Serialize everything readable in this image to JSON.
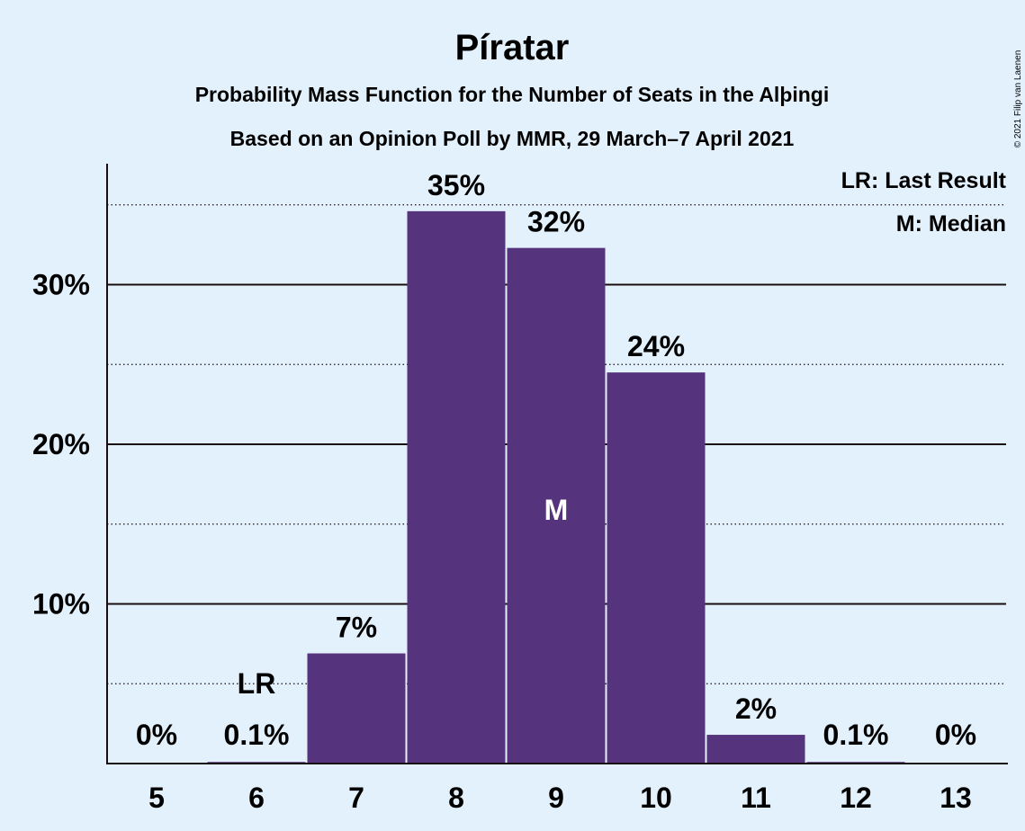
{
  "chart_data": {
    "type": "bar",
    "title": "Píratar",
    "subtitle_1": "Probability Mass Function for the Number of Seats in the Alþingi",
    "subtitle_2": "Based on an Opinion Poll by MMR, 29 March–7 April 2021",
    "categories": [
      "5",
      "6",
      "7",
      "8",
      "9",
      "10",
      "11",
      "12",
      "13"
    ],
    "values": [
      0,
      0.1,
      6.9,
      34.6,
      32.3,
      24.5,
      1.8,
      0.1,
      0
    ],
    "value_labels": [
      "0%",
      "0.1%",
      "7%",
      "35%",
      "32%",
      "24%",
      "2%",
      "0.1%",
      "0%"
    ],
    "y_ticks": [
      {
        "value": 10,
        "label": "10%"
      },
      {
        "value": 20,
        "label": "20%"
      },
      {
        "value": 30,
        "label": "30%"
      }
    ],
    "minor_gridlines": [
      5,
      15,
      25,
      35
    ],
    "ylim": [
      0,
      37.5
    ],
    "xlabel": "",
    "ylabel": "",
    "grid": true,
    "last_result": {
      "category": "6",
      "marker": "LR"
    },
    "median": {
      "category": "9",
      "marker": "M"
    },
    "legend": {
      "placement": "top-right",
      "entries": [
        "LR: Last Result",
        "M: Median"
      ]
    },
    "colors": {
      "bar": "#55337d",
      "background": "#e3f1fd",
      "text": "#1a0e10"
    }
  },
  "copyright": "© 2021 Filip van Laenen"
}
